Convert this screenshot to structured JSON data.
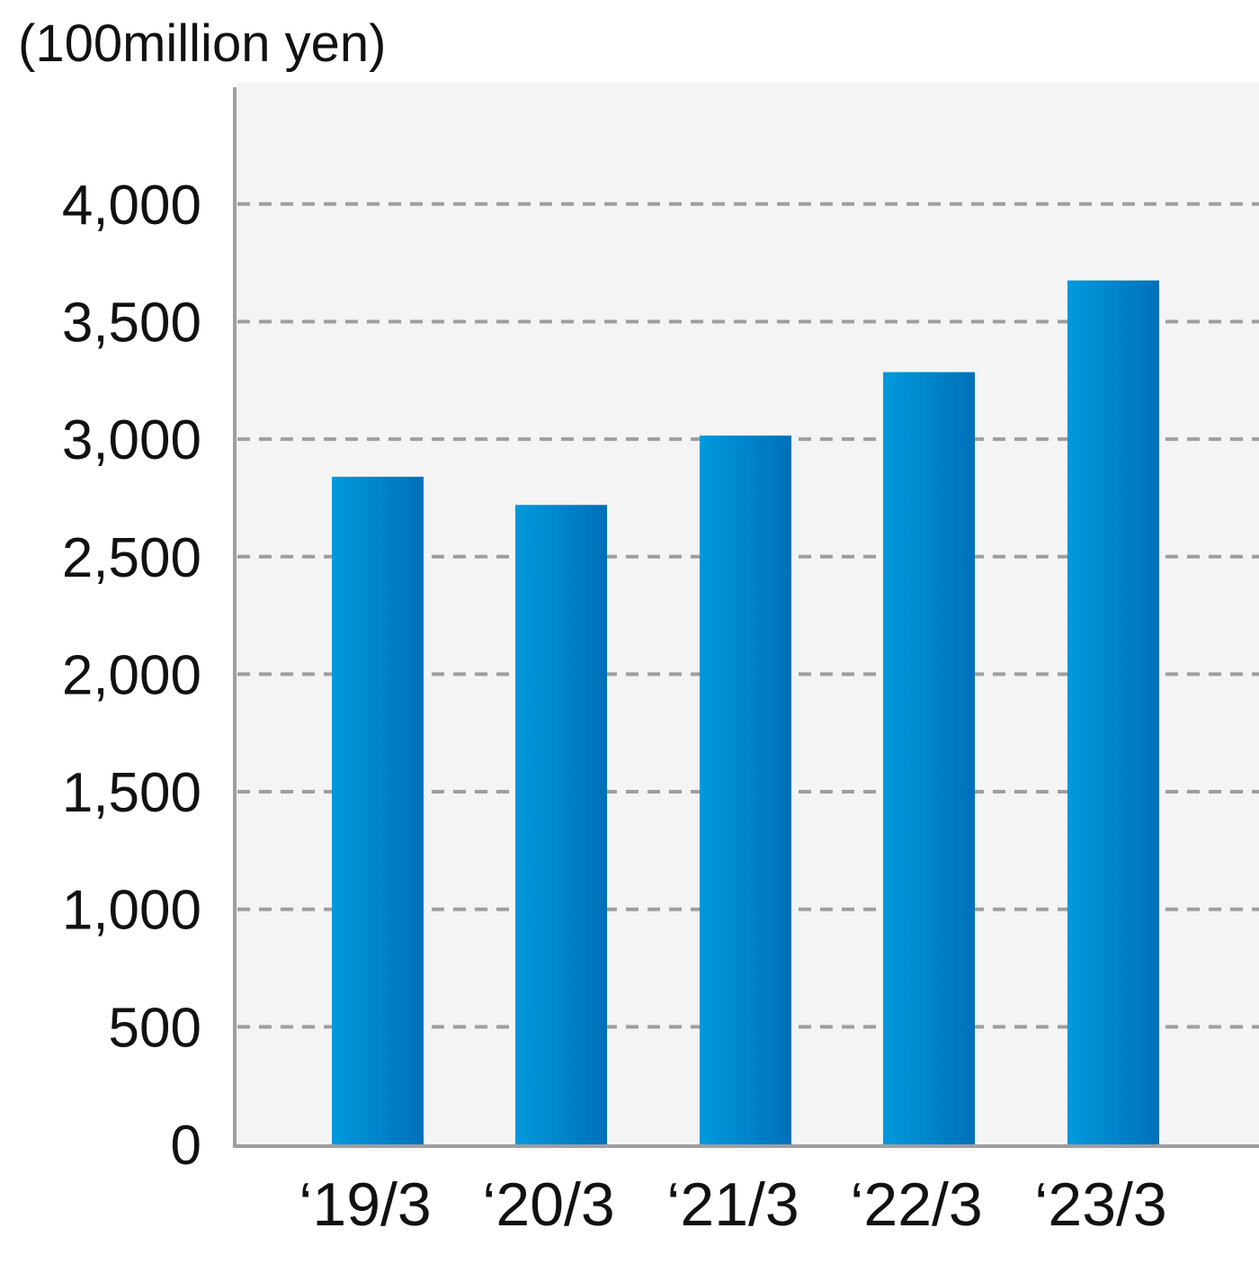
{
  "chart_data": {
    "type": "bar",
    "ylabel": "(100million yen)",
    "categories": [
      "‘19/3",
      "‘20/3",
      "‘21/3",
      "‘22/3",
      "‘23/3"
    ],
    "values": [
      2840,
      2720,
      3015,
      3285,
      3675
    ],
    "ylim": [
      0,
      4500
    ],
    "yticks": [
      0,
      500,
      1000,
      1500,
      2000,
      2500,
      3000,
      3500,
      4000
    ],
    "ytick_labels": [
      "0",
      "500",
      "1,000",
      "1,500",
      "2,000",
      "2,500",
      "3,000",
      "3,500",
      "4,000"
    ],
    "grid": true,
    "colors": {
      "bar_light": "#0099dd",
      "bar_dark": "#0070b8",
      "plot_background": "#f4f4f4",
      "axis": "#9e9e9e",
      "gridline": "#9e9e9e"
    }
  }
}
